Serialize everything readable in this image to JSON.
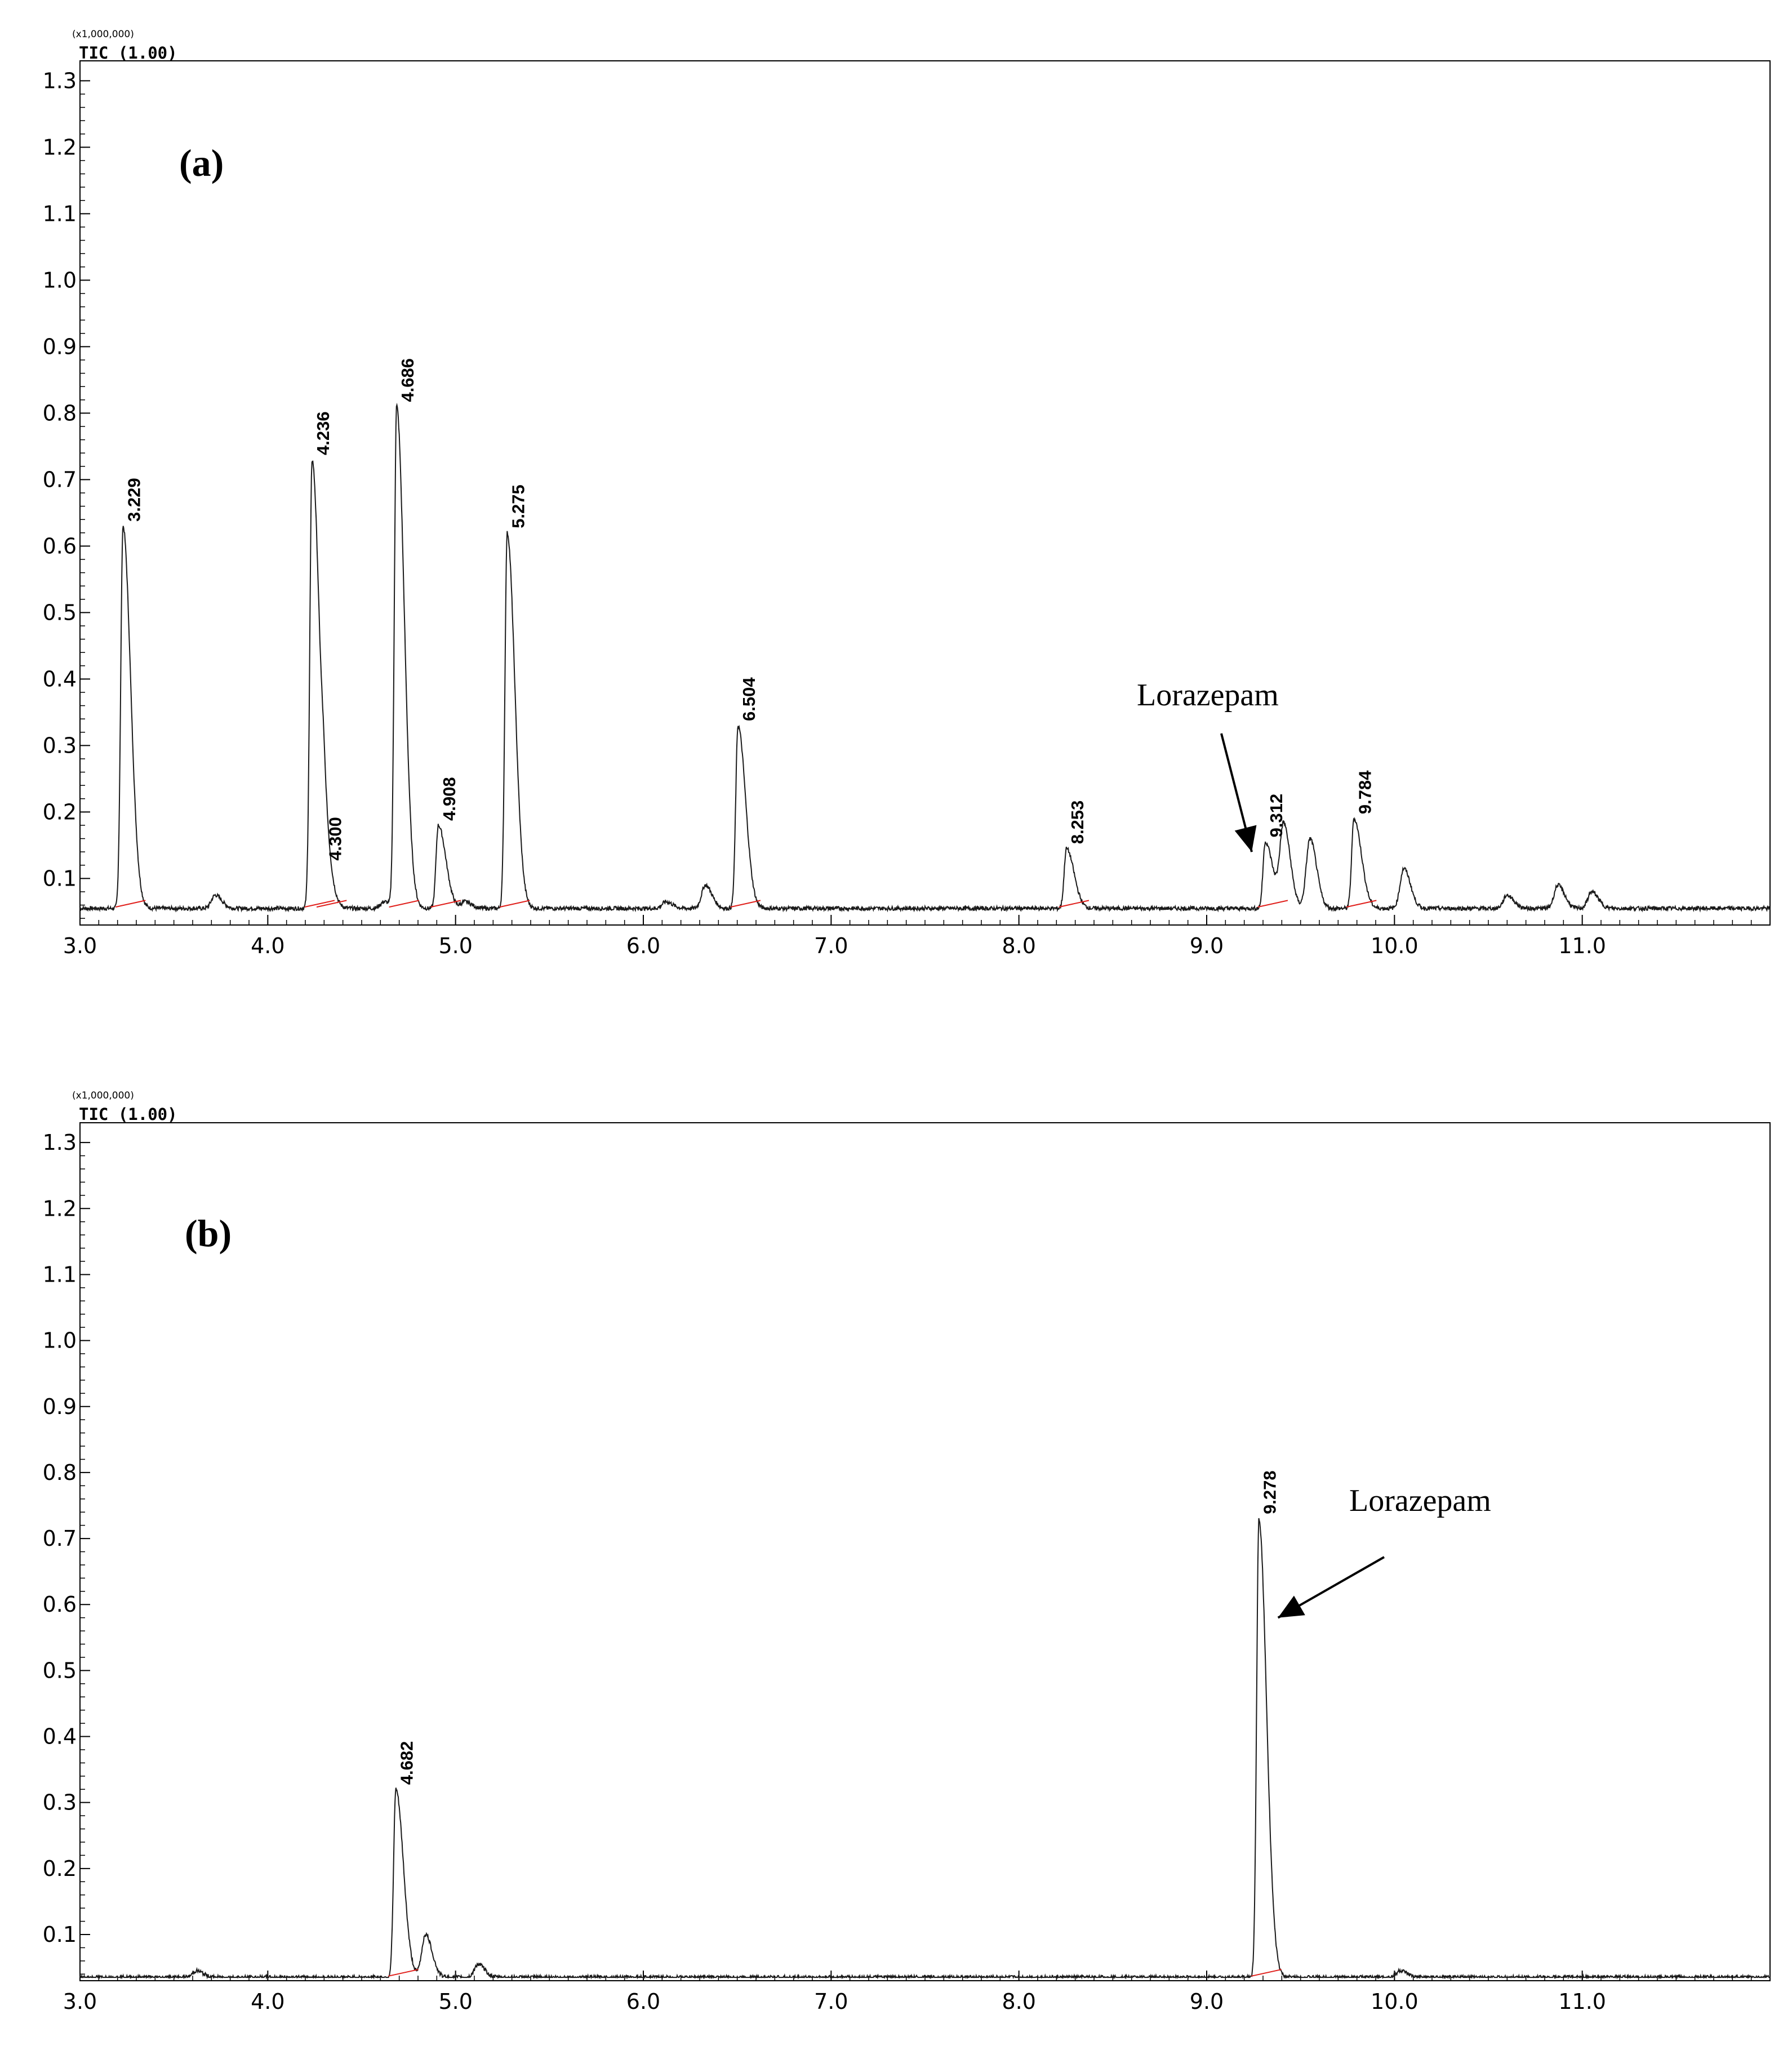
{
  "chart_data": [
    {
      "type": "line",
      "panel_label": "(a)",
      "trace_label": "TIC (1.00)",
      "y_scale_label": "(x1,000,000)",
      "xlim": [
        3.0,
        12.0
      ],
      "ylim": [
        0.03,
        1.33
      ],
      "x_ticks": [
        "3.0",
        "4.0",
        "5.0",
        "6.0",
        "7.0",
        "8.0",
        "9.0",
        "10.0",
        "11.0"
      ],
      "y_ticks": [
        "0.1",
        "0.2",
        "0.3",
        "0.4",
        "0.5",
        "0.6",
        "0.7",
        "0.8",
        "0.9",
        "1.0",
        "1.1",
        "1.2",
        "1.3"
      ],
      "baseline": 0.055,
      "peaks": [
        {
          "label": "3.229",
          "x": 3.229,
          "y": 0.63
        },
        {
          "label": "4.236",
          "x": 4.236,
          "y": 0.73
        },
        {
          "label": "4.300",
          "x": 4.3,
          "y": 0.12
        },
        {
          "label": "4.686",
          "x": 4.686,
          "y": 0.81
        },
        {
          "label": "4.908",
          "x": 4.908,
          "y": 0.18
        },
        {
          "label": "5.275",
          "x": 5.275,
          "y": 0.62
        },
        {
          "label": "6.504",
          "x": 6.504,
          "y": 0.33
        },
        {
          "label": "8.253",
          "x": 8.253,
          "y": 0.145
        },
        {
          "label": "9.312",
          "x": 9.312,
          "y": 0.155
        },
        {
          "label": "9.784",
          "x": 9.784,
          "y": 0.19
        }
      ],
      "minor_peaks": [
        {
          "x": 3.72,
          "y": 0.075
        },
        {
          "x": 4.62,
          "y": 0.065
        },
        {
          "x": 5.05,
          "y": 0.065
        },
        {
          "x": 6.12,
          "y": 0.065
        },
        {
          "x": 6.33,
          "y": 0.09
        },
        {
          "x": 9.41,
          "y": 0.18
        },
        {
          "x": 9.55,
          "y": 0.16
        },
        {
          "x": 10.05,
          "y": 0.115
        },
        {
          "x": 10.6,
          "y": 0.075
        },
        {
          "x": 10.87,
          "y": 0.09
        },
        {
          "x": 11.05,
          "y": 0.08
        }
      ],
      "annotations": [
        {
          "text": "Lorazepam",
          "arrow_to": {
            "x": 9.24,
            "y": 0.14
          }
        }
      ]
    },
    {
      "type": "line",
      "panel_label": "(b)",
      "trace_label": "TIC (1.00)",
      "y_scale_label": "(x1,000,000)",
      "xlim": [
        3.0,
        12.0
      ],
      "ylim": [
        0.03,
        1.33
      ],
      "x_ticks": [
        "3.0",
        "4.0",
        "5.0",
        "6.0",
        "7.0",
        "8.0",
        "9.0",
        "10.0",
        "11.0"
      ],
      "y_ticks": [
        "0.1",
        "0.2",
        "0.3",
        "0.4",
        "0.5",
        "0.6",
        "0.7",
        "0.8",
        "0.9",
        "1.0",
        "1.1",
        "1.2",
        "1.3"
      ],
      "baseline": 0.035,
      "peaks": [
        {
          "label": "4.682",
          "x": 4.682,
          "y": 0.32
        },
        {
          "label": "9.278",
          "x": 9.278,
          "y": 0.73
        }
      ],
      "minor_peaks": [
        {
          "x": 3.62,
          "y": 0.045
        },
        {
          "x": 4.84,
          "y": 0.1
        },
        {
          "x": 5.12,
          "y": 0.055
        },
        {
          "x": 10.03,
          "y": 0.045
        }
      ],
      "annotations": [
        {
          "text": "Lorazepam",
          "arrow_to": {
            "x": 9.38,
            "y": 0.58
          }
        }
      ]
    }
  ],
  "colors": {
    "trace": "#1a1a1a",
    "integration_baseline": "#e0201c",
    "axis": "#000000"
  }
}
